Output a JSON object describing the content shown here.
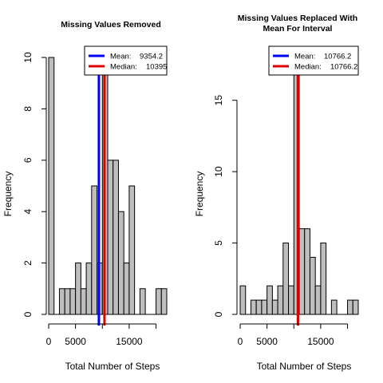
{
  "chart_data": [
    {
      "type": "bar",
      "title": "Missing Values Removed",
      "xlabel": "Total Number of Steps",
      "ylabel": "Frequency",
      "xlim": [
        0,
        22000
      ],
      "ylim": [
        0,
        10
      ],
      "bin_width": 1000,
      "bin_start": 0,
      "values": [
        10,
        0,
        1,
        1,
        1,
        2,
        1,
        2,
        5,
        2,
        10,
        6,
        6,
        4,
        2,
        5,
        0,
        1,
        0,
        0,
        1,
        1
      ],
      "x_ticks": [
        0,
        5000,
        15000
      ],
      "y_ticks": [
        0,
        2,
        4,
        6,
        8,
        10
      ],
      "bar_color": "#bebebe",
      "legend_position": "top-right",
      "legend": [
        {
          "label": "Mean:",
          "value": "9354.2",
          "color": "#0000ff",
          "x": 9354.2
        },
        {
          "label": "Median:",
          "value": "10395",
          "color": "#dd0000",
          "x": 10395
        }
      ]
    },
    {
      "type": "bar",
      "title_lines": [
        "Missing Values Replaced With",
        "Mean For Interval"
      ],
      "xlabel": "Total Number of Steps",
      "ylabel": "Frequency",
      "xlim": [
        0,
        22000
      ],
      "ylim": [
        0,
        18
      ],
      "bin_width": 1000,
      "bin_start": 0,
      "values": [
        2,
        0,
        1,
        1,
        1,
        2,
        1,
        2,
        5,
        2,
        18,
        6,
        6,
        4,
        2,
        5,
        0,
        1,
        0,
        0,
        1,
        1
      ],
      "x_ticks": [
        0,
        5000,
        15000
      ],
      "y_ticks": [
        0,
        5,
        10,
        15
      ],
      "bar_color": "#bebebe",
      "legend_position": "top-right",
      "legend": [
        {
          "label": "Mean:",
          "value": "10766.2",
          "color": "#0000ff",
          "x": 10766.2
        },
        {
          "label": "Median:",
          "value": "10766.2",
          "color": "#dd0000",
          "x": 10766.2
        }
      ]
    }
  ]
}
